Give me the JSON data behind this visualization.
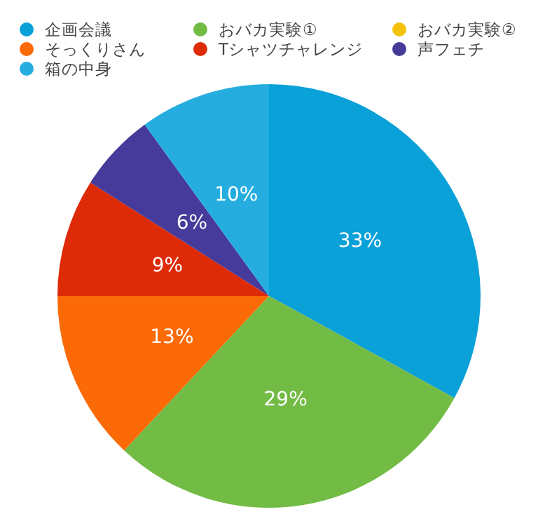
{
  "chart_data": {
    "type": "pie",
    "categories": [
      "企画会議",
      "おバカ実験①",
      "おバカ実験②",
      "そっくりさん",
      "Tシャツチャレンジ",
      "声フェチ",
      "箱の中身"
    ],
    "values": [
      33,
      29,
      0,
      13,
      9,
      6,
      10
    ],
    "colors": [
      "#0aa0d8",
      "#72bb44",
      "#f4c20d",
      "#fb6a06",
      "#dd2a07",
      "#463a9a",
      "#25ade0"
    ],
    "value_labels": [
      "33%",
      "29%",
      null,
      "13%",
      "9%",
      "6%",
      "10%"
    ],
    "legend": "top"
  }
}
